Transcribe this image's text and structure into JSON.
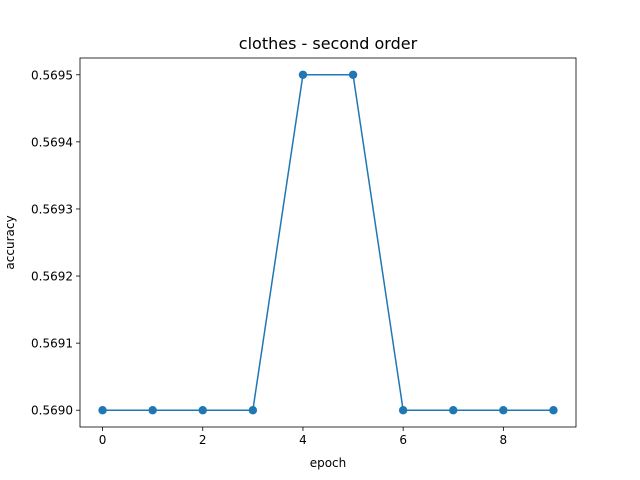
{
  "chart_data": {
    "type": "line",
    "title": "clothes - second order",
    "xlabel": "epoch",
    "ylabel": "accuracy",
    "x": [
      0,
      1,
      2,
      3,
      4,
      5,
      6,
      7,
      8,
      9
    ],
    "series": [
      {
        "values": [
          0.569,
          0.569,
          0.569,
          0.569,
          0.5695,
          0.5695,
          0.569,
          0.569,
          0.569,
          0.569
        ],
        "color": "#1f77b4",
        "marker": "circle"
      }
    ],
    "xlim": [
      -0.45,
      9.45
    ],
    "ylim": [
      0.568975,
      0.569525
    ],
    "xticks": [
      0,
      2,
      4,
      6,
      8
    ],
    "xtick_labels": [
      "0",
      "2",
      "4",
      "6",
      "8"
    ],
    "yticks": [
      0.569,
      0.5691,
      0.5692,
      0.5693,
      0.5694,
      0.5695
    ],
    "ytick_labels": [
      "0.5690",
      "0.5691",
      "0.5692",
      "0.5693",
      "0.5694",
      "0.5695"
    ],
    "grid": false,
    "legend": "none"
  }
}
